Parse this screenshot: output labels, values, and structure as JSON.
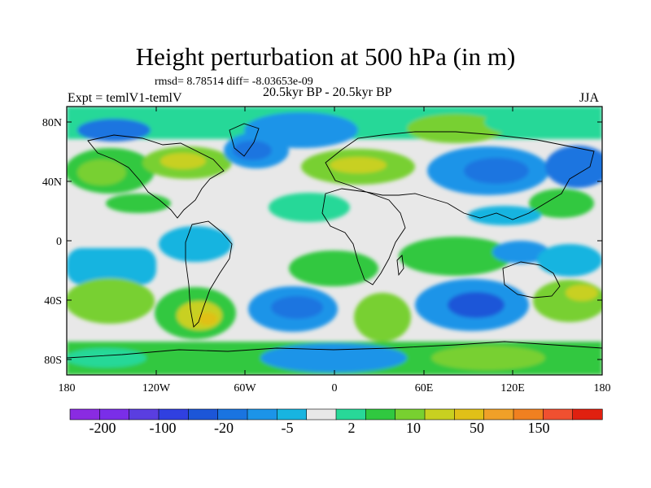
{
  "title": "Height perturbation at 500 hPa (in m)",
  "stats": "rmsd= 8.78514 diff= -8.03653e-09",
  "experiment": "Expt = temlV1-temlV",
  "period": "20.5kyr BP - 20.5kyr BP",
  "season": "JJA",
  "lat_labels": [
    "80N",
    "40N",
    "0",
    "40S",
    "80S"
  ],
  "lon_labels": [
    "180",
    "120W",
    "60W",
    "0",
    "60E",
    "120E",
    "180"
  ],
  "colorbar": {
    "colors": [
      "#8a2be2",
      "#7a2ee8",
      "#5a3ee0",
      "#3040e0",
      "#1c56d8",
      "#1a74e0",
      "#1c94e8",
      "#18b4e0",
      "#e8e8e8",
      "#28d898",
      "#30c840",
      "#78d030",
      "#c8d020",
      "#e0c018",
      "#f0a028",
      "#f08020",
      "#f05030",
      "#e02010"
    ],
    "labels": [
      "-200",
      "-100",
      "-20",
      "-5",
      "2",
      "10",
      "50",
      "150"
    ]
  }
}
